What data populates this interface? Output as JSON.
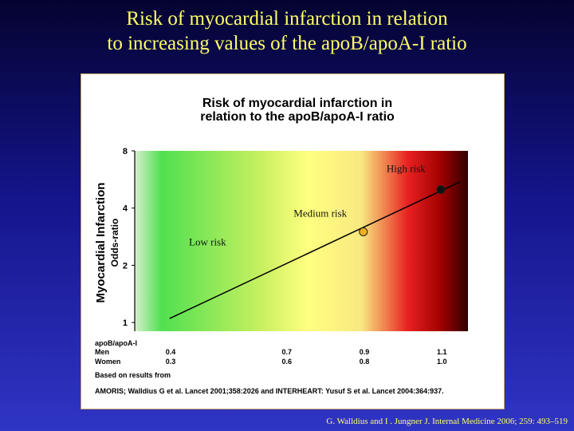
{
  "slide": {
    "title_line1": "Risk of myocardial infarction in relation",
    "title_line2": "to increasing values of the apoB/apoA-I ratio",
    "citation": "G. Walldius and  I . Jungner J. Internal Medicine 2006; 259: 493–519"
  },
  "chart_data": {
    "type": "line",
    "title_line1": "Risk of myocardial infarction in",
    "title_line2": "relation to the apoB/apoA-I ratio",
    "ylabel": "Myocardial Infarction",
    "ylabel2": "Odds-ratio",
    "yscale": "log",
    "y_ticks": [
      "1",
      "2",
      "4",
      "8"
    ],
    "y_tick_values": [
      1,
      2,
      4,
      8
    ],
    "ylim": [
      0.9,
      8
    ],
    "x_ratio_label": "apoB/apoA-I",
    "x_rows": [
      {
        "label": "Men",
        "values": [
          "0.4",
          "0.7",
          "0.9",
          "1.1"
        ]
      },
      {
        "label": "Women",
        "values": [
          "0.3",
          "0.6",
          "0.8",
          "1.0"
        ]
      }
    ],
    "x_tick_values": [
      0.4,
      0.7,
      0.9,
      1.1
    ],
    "xlim": [
      0.31,
      1.17
    ],
    "series": [
      {
        "x": [
          0.4,
          1.15
        ],
        "y": [
          1.05,
          5.5
        ],
        "color": "#000000"
      }
    ],
    "markers": [
      {
        "x": 0.9,
        "y": 3.0,
        "color": "#f0b020"
      },
      {
        "x": 1.1,
        "y": 5.0,
        "color": "#111111"
      }
    ],
    "zones": [
      {
        "label": "Low risk",
        "label_x": 0.45,
        "label_y": 2.55
      },
      {
        "label": "Medium risk",
        "label_x": 0.72,
        "label_y": 3.6
      },
      {
        "label": "High risk",
        "label_x": 0.96,
        "label_y": 6.2
      }
    ],
    "gradient_colors": [
      "#d8f0d0",
      "#50e050",
      "#c8f060",
      "#ffff80",
      "#f8e880",
      "#e82020",
      "#a00000",
      "#300000"
    ],
    "source_label": "Based on results from",
    "source_text": "AMORIS;   Walldius G et al.  Lancet 2001;358:2026 and INTERHEART:   Yusuf S et al.  Lancet 2004:364:937.",
    "grid": false,
    "legend": "none"
  }
}
